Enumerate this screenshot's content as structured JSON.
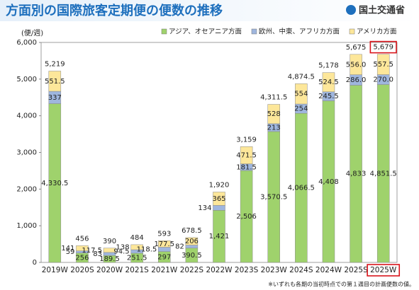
{
  "header": {
    "title": "方面別の国際旅客定期便の便数の推移",
    "logo": "国土交通省"
  },
  "chart_data": {
    "type": "stacked_bar",
    "y_label": "(便/週)",
    "categories": [
      "2019W",
      "2020S",
      "2020W",
      "2021S",
      "2021W",
      "2022S",
      "2022W",
      "2023S",
      "2023W",
      "2024S",
      "2024W",
      "2025S",
      "2025W"
    ],
    "series": [
      {
        "name": "アジア、オセアニア方面",
        "color": "#9fd26c",
        "values": [
          4330.5,
          256,
          189.5,
          251.5,
          297,
          390.5,
          1421,
          2506,
          3570.5,
          4066.5,
          4408,
          4833,
          4851.5
        ],
        "value_labels": [
          "4,330.5",
          "256",
          "189.5",
          "251.5",
          "297",
          "390.5",
          "1,421",
          "2,506",
          "3,570.5",
          "4,066.5",
          "4,408",
          "4,833",
          "4,851.5"
        ]
      },
      {
        "name": "欧州、中東、アフリカ方面",
        "color": "#9fb6de",
        "values": [
          337,
          59,
          83,
          94.5,
          118.5,
          82,
          134,
          181.5,
          213,
          254,
          245.5,
          286.0,
          270.0
        ],
        "value_labels": [
          "337",
          "59",
          "83",
          "94.5",
          "118.5",
          "82",
          "134",
          "181.5",
          "213",
          "254",
          "245.5",
          "286.0",
          "270.0"
        ]
      },
      {
        "name": "アメリカ方面",
        "color": "#fde79a",
        "values": [
          551.5,
          141,
          117.5,
          138,
          177.5,
          206,
          365,
          471.5,
          528,
          554,
          524.5,
          556.0,
          557.5
        ],
        "value_labels": [
          "551.5",
          "141",
          "117.5",
          "138",
          "177.5",
          "206",
          "365",
          "471.5",
          "528",
          "554",
          "524.5",
          "556.0",
          "557.5"
        ]
      }
    ],
    "totals": [
      5219,
      456,
      390,
      484,
      593,
      678.5,
      1920,
      3159,
      4311.5,
      4874.5,
      5178,
      5675,
      5679
    ],
    "total_labels": [
      "5,219",
      "456",
      "390",
      "484",
      "593",
      "678.5",
      "1,920",
      "3,159",
      "4,311.5",
      "4,874.5",
      "5,178",
      "5,675",
      "5,679"
    ],
    "highlight": "2025W",
    "ylim": [
      0,
      6000
    ],
    "yticks": [
      0,
      {
        "value": 1000,
        "label": "1,000"
      },
      {
        "value": 2000,
        "label": "2,000"
      },
      {
        "value": 3000,
        "label": "3,000"
      },
      {
        "value": 4000,
        "label": "4,000"
      },
      {
        "value": 5000,
        "label": "5,000"
      },
      {
        "value": 6000,
        "label": "6,000"
      }
    ],
    "legend": "top-right",
    "footnote": "※いずれも各期の当初時点での第１週目の計画便数の値。"
  }
}
